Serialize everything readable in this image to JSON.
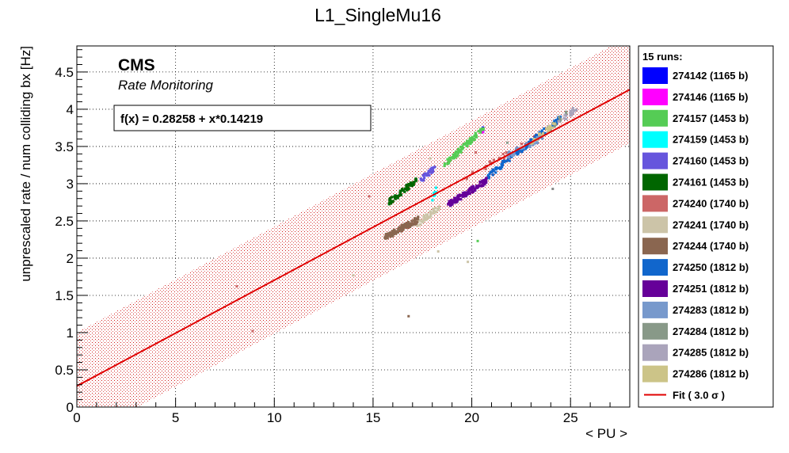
{
  "chart_data": {
    "type": "scatter",
    "title": "L1_SingleMu16",
    "xlabel": "< PU >",
    "ylabel": "unprescaled rate / num colliding bx [Hz]",
    "xlim": [
      0,
      28
    ],
    "ylim": [
      0,
      4.85
    ],
    "x_ticks": [
      "0",
      "5",
      "10",
      "15",
      "20",
      "25"
    ],
    "y_ticks": [
      "0",
      "0.5",
      "1",
      "1.5",
      "2",
      "2.5",
      "3",
      "3.5",
      "4",
      "4.5"
    ],
    "grid": true,
    "cms_label": "CMS",
    "cms_sublabel": "Rate Monitoring",
    "fit": {
      "label": "f(x) = 0.28258 + x*0.14219",
      "intercept": 0.28258,
      "slope": 0.14219,
      "band_halfwidth": 0.72,
      "color": "#e00000"
    },
    "legend": {
      "header": "15 runs:",
      "fit_entry": "Fit ( 3.0 σ )",
      "placement": "right"
    },
    "series": [
      {
        "name": "274142 (1165 b)",
        "color": "#0000ff",
        "x_range": [
          20.5,
          20.6
        ],
        "y_range": [
          3.7,
          3.72
        ],
        "count": 4
      },
      {
        "name": "274146 (1165 b)",
        "color": "#ff00ff",
        "x_range": [
          20.4,
          20.6
        ],
        "y_range": [
          3.68,
          3.73
        ],
        "count": 5
      },
      {
        "name": "274157 (1453 b)",
        "color": "#55cc55",
        "x_range": [
          18.6,
          20.6
        ],
        "y_range": [
          3.25,
          3.74
        ],
        "count": 90
      },
      {
        "name": "274159 (1453 b)",
        "color": "#00ffff",
        "x_range": [
          18.0,
          18.2
        ],
        "y_range": [
          2.78,
          2.92
        ],
        "count": 10
      },
      {
        "name": "274160 (1453 b)",
        "color": "#6655dd",
        "x_range": [
          17.4,
          18.2
        ],
        "y_range": [
          3.05,
          3.22
        ],
        "count": 30
      },
      {
        "name": "274161 (1453 b)",
        "color": "#006600",
        "x_range": [
          15.8,
          17.2
        ],
        "y_range": [
          2.75,
          3.05
        ],
        "count": 60
      },
      {
        "name": "274240 (1740 b)",
        "color": "#cc6666",
        "x_range": [
          19.5,
          23.5
        ],
        "y_range": [
          3.05,
          3.65
        ],
        "count": 25
      },
      {
        "name": "274241 (1740 b)",
        "color": "#ccc4a8",
        "x_range": [
          17.2,
          18.4
        ],
        "y_range": [
          2.45,
          2.7
        ],
        "count": 40
      },
      {
        "name": "274244 (1740 b)",
        "color": "#8a6650",
        "x_range": [
          15.6,
          17.3
        ],
        "y_range": [
          2.28,
          2.52
        ],
        "count": 120
      },
      {
        "name": "274250 (1812 b)",
        "color": "#1166cc",
        "x_range": [
          20.8,
          24.5
        ],
        "y_range": [
          3.1,
          3.88
        ],
        "count": 120
      },
      {
        "name": "274251 (1812 b)",
        "color": "#660099",
        "x_range": [
          18.8,
          20.8
        ],
        "y_range": [
          2.72,
          3.05
        ],
        "count": 110
      },
      {
        "name": "274283 (1812 b)",
        "color": "#7799cc",
        "x_range": [
          21.8,
          23.6
        ],
        "y_range": [
          3.38,
          3.62
        ],
        "count": 40
      },
      {
        "name": "274284 (1812 b)",
        "color": "#889988",
        "x_range": [
          23.8,
          24.8
        ],
        "y_range": [
          3.7,
          3.95
        ],
        "count": 20
      },
      {
        "name": "274285 (1812 b)",
        "color": "#aaa4bb",
        "x_range": [
          24.3,
          25.3
        ],
        "y_range": [
          3.8,
          4.02
        ],
        "count": 20
      },
      {
        "name": "274286 (1812 b)",
        "color": "#ccc488",
        "x_range": [
          23.0,
          24.2
        ],
        "y_range": [
          3.55,
          3.8
        ],
        "count": 25
      }
    ],
    "outliers": [
      {
        "x": 8.1,
        "y": 1.62,
        "color": "#cc6666"
      },
      {
        "x": 8.9,
        "y": 1.02,
        "color": "#cc6666"
      },
      {
        "x": 14.0,
        "y": 1.77,
        "color": "#ccc4a8"
      },
      {
        "x": 14.8,
        "y": 2.83,
        "color": "#cc6666"
      },
      {
        "x": 16.8,
        "y": 1.22,
        "color": "#8a6650"
      },
      {
        "x": 18.3,
        "y": 2.09,
        "color": "#ccc4a8"
      },
      {
        "x": 20.3,
        "y": 2.23,
        "color": "#55cc55"
      },
      {
        "x": 20.2,
        "y": 3.42,
        "color": "#cc6666"
      },
      {
        "x": 17.9,
        "y": 3.34,
        "color": "#ccc4a8"
      },
      {
        "x": 21.8,
        "y": 3.55,
        "color": "#889988"
      },
      {
        "x": 24.1,
        "y": 2.93,
        "color": "#888888"
      },
      {
        "x": 19.8,
        "y": 1.95,
        "color": "#ccc4a8"
      }
    ]
  }
}
